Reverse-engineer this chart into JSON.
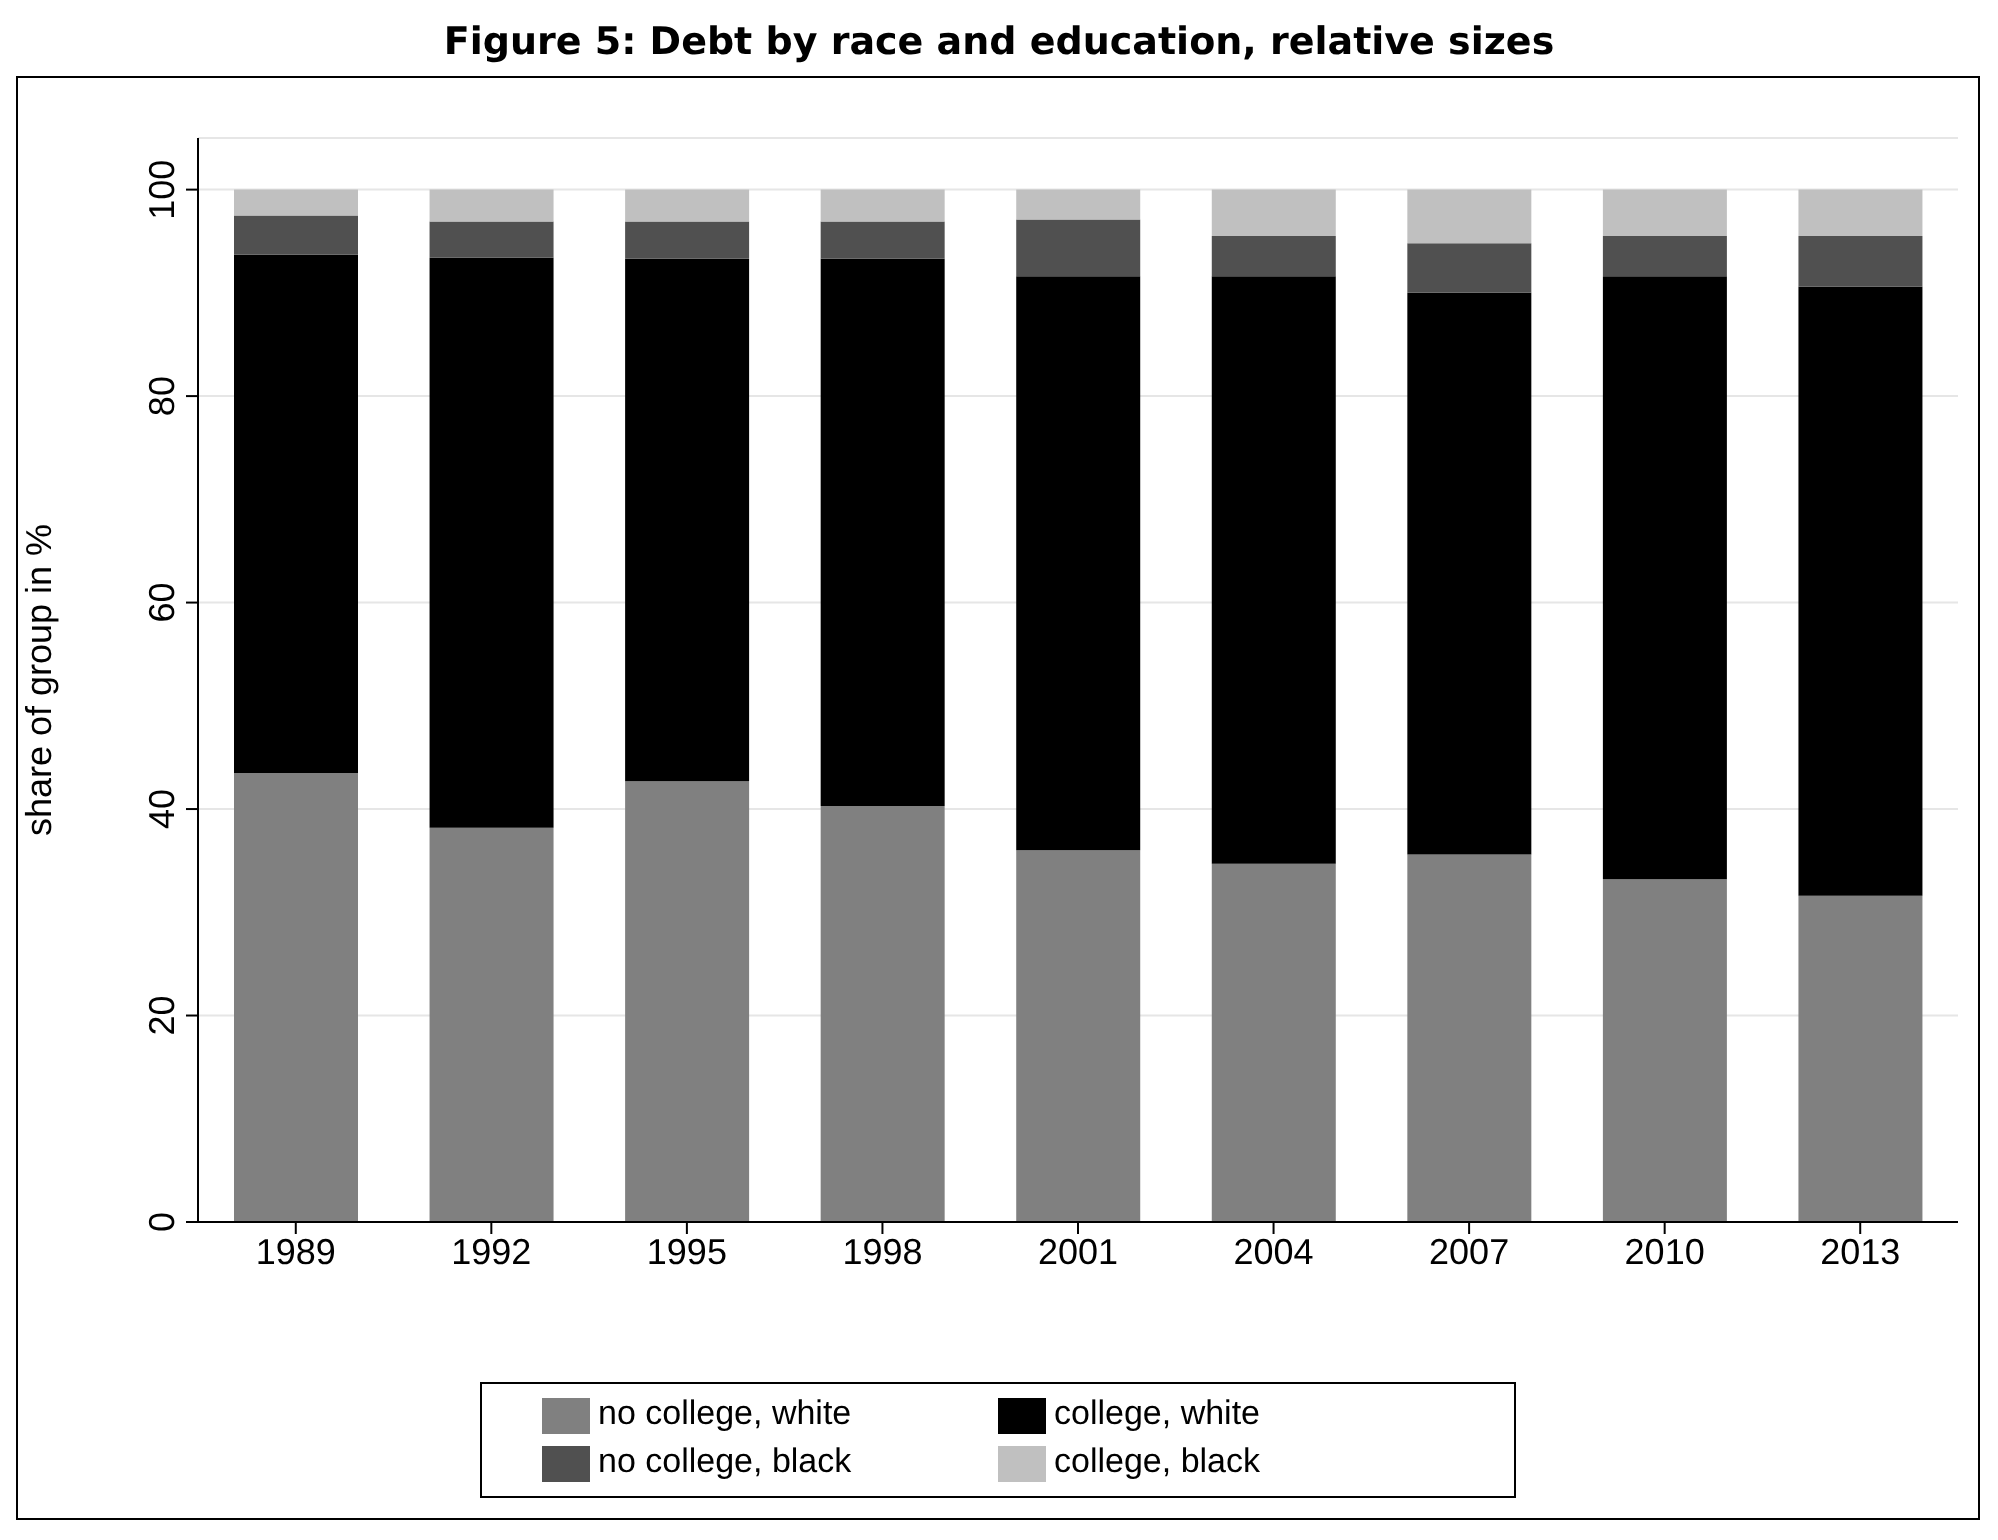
{
  "chart_data": {
    "type": "bar",
    "title": "Figure 5: Debt by race and education, relative sizes",
    "ylabel": "share of group in %",
    "categories": [
      "1989",
      "1992",
      "1995",
      "1998",
      "2001",
      "2004",
      "2007",
      "2010",
      "2013"
    ],
    "stacked": true,
    "series": [
      {
        "name": "no college, white",
        "color": "#808080",
        "values": [
          43.5,
          38.2,
          42.7,
          40.3,
          36.0,
          34.7,
          35.6,
          33.2,
          31.6
        ]
      },
      {
        "name": "college, white",
        "color": "#000000",
        "values": [
          50.2,
          55.2,
          50.6,
          53.0,
          55.6,
          56.9,
          54.4,
          58.4,
          59.0
        ]
      },
      {
        "name": "no college, black",
        "color": "#505050",
        "values": [
          3.8,
          3.5,
          3.6,
          3.6,
          5.5,
          3.9,
          4.8,
          3.9,
          4.9
        ]
      },
      {
        "name": "college, black",
        "color": "#c0c0c0",
        "values": [
          2.5,
          3.1,
          3.1,
          3.1,
          2.9,
          4.5,
          5.2,
          4.5,
          4.5
        ]
      }
    ],
    "ylim": [
      0,
      105
    ],
    "yticks": [
      0,
      20,
      40,
      60,
      80,
      100
    ],
    "grid": "y",
    "legend": "bottom"
  }
}
